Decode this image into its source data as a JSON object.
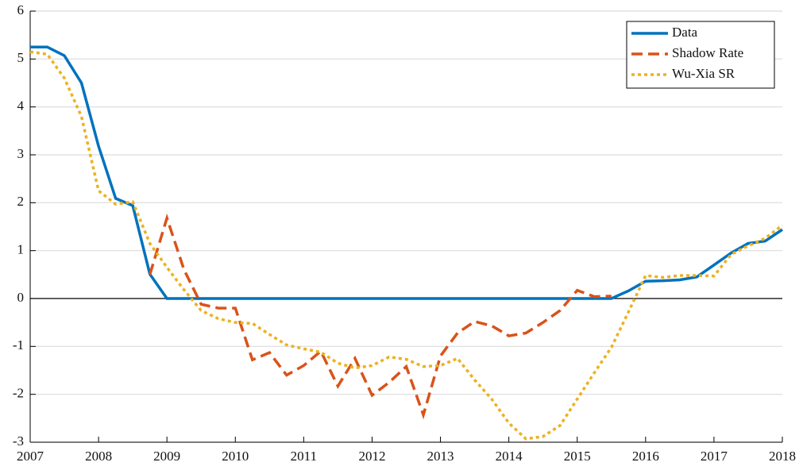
{
  "chart_data": {
    "type": "line",
    "x": [
      2007,
      2007.25,
      2007.5,
      2007.75,
      2008,
      2008.25,
      2008.5,
      2008.75,
      2009,
      2009.25,
      2009.5,
      2009.75,
      2010,
      2010.25,
      2010.5,
      2010.75,
      2011,
      2011.25,
      2011.5,
      2011.75,
      2012,
      2012.25,
      2012.5,
      2012.75,
      2013,
      2013.25,
      2013.5,
      2013.75,
      2014,
      2014.25,
      2014.5,
      2014.75,
      2015,
      2015.25,
      2015.5,
      2015.75,
      2016,
      2016.25,
      2016.5,
      2016.75,
      2017,
      2017.25,
      2017.5,
      2017.75,
      2018
    ],
    "series": [
      {
        "name": "Data",
        "color": "#0072bd",
        "style": "solid",
        "values": [
          5.25,
          5.25,
          5.07,
          4.5,
          3.18,
          2.09,
          1.94,
          0.51,
          0,
          0,
          0,
          0,
          0,
          0,
          0,
          0,
          0,
          0,
          0,
          0,
          0,
          0,
          0,
          0,
          0,
          0,
          0,
          0,
          0,
          0,
          0,
          0,
          0,
          0,
          0,
          0.16,
          0.36,
          0.37,
          0.39,
          0.45,
          0.7,
          0.95,
          1.15,
          1.2,
          1.44
        ]
      },
      {
        "name": "Shadow Rate",
        "color": "#d95319",
        "style": "dashed",
        "values": [
          null,
          null,
          null,
          null,
          null,
          null,
          null,
          0.5,
          1.68,
          0.6,
          -0.12,
          -0.2,
          -0.2,
          -1.28,
          -1.13,
          -1.6,
          -1.4,
          -1.1,
          -1.83,
          -1.25,
          -2.02,
          -1.75,
          -1.42,
          -2.43,
          -1.2,
          -0.72,
          -0.48,
          -0.57,
          -0.78,
          -0.72,
          -0.5,
          -0.25,
          0.17,
          0.04,
          0.05,
          null,
          null,
          null,
          null,
          null,
          null,
          null,
          null,
          null,
          null
        ]
      },
      {
        "name": "Wu-Xia SR",
        "color": "#edb120",
        "style": "dotted",
        "values": [
          5.15,
          5.1,
          4.6,
          3.8,
          2.25,
          1.97,
          2.02,
          1.15,
          0.65,
          0.18,
          -0.25,
          -0.42,
          -0.5,
          -0.52,
          -0.75,
          -0.97,
          -1.05,
          -1.12,
          -1.35,
          -1.45,
          -1.4,
          -1.22,
          -1.27,
          -1.42,
          -1.4,
          -1.25,
          -1.7,
          -2.1,
          -2.6,
          -2.93,
          -2.88,
          -2.65,
          -2.1,
          -1.55,
          -1.02,
          -0.28,
          0.48,
          0.44,
          0.48,
          0.48,
          0.47,
          0.92,
          1.1,
          1.26,
          1.53
        ]
      }
    ],
    "xlim": [
      2007,
      2018
    ],
    "xticks": [
      2007,
      2008,
      2009,
      2010,
      2011,
      2012,
      2013,
      2014,
      2015,
      2016,
      2017,
      2018
    ],
    "ylim": [
      -3,
      6
    ],
    "yticks": [
      -3,
      -2,
      -1,
      0,
      1,
      2,
      3,
      4,
      5,
      6
    ],
    "grid": true,
    "zero_line": true,
    "legend": "top-right"
  }
}
